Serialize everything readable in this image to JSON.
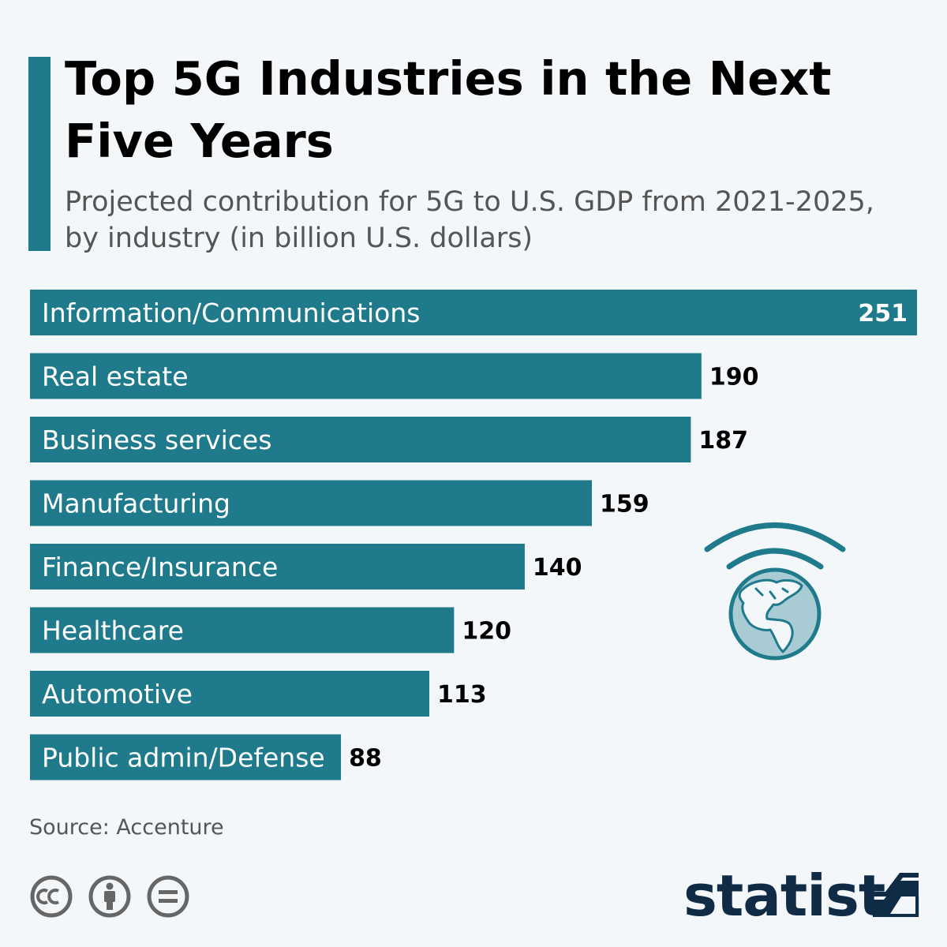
{
  "colors": {
    "bar": "#1f7a8c",
    "accent": "#1f7a8c",
    "brand": "#0f2b45",
    "icon": "#555555"
  },
  "header": {
    "title": "Top 5G Industries in the Next Five Years",
    "subtitle": "Projected contribution for 5G to U.S. GDP from 2021-2025, by industry (in billion U.S. dollars)"
  },
  "chart_data": {
    "type": "bar",
    "orientation": "horizontal",
    "title": "Top 5G Industries in the Next Five Years",
    "subtitle": "Projected contribution for 5G to U.S. GDP from 2021-2025, by industry (in billion U.S. dollars)",
    "categories": [
      "Information/Communications",
      "Real estate",
      "Business services",
      "Manufacturing",
      "Finance/Insurance",
      "Healthcare",
      "Automotive",
      "Public admin/Defense"
    ],
    "values": [
      251,
      190,
      187,
      159,
      140,
      120,
      113,
      88
    ],
    "xlim": [
      0,
      251
    ],
    "xlabel": "",
    "ylabel": "",
    "grid": false
  },
  "footer": {
    "source": "Source: Accenture",
    "brand": "statista",
    "license_icons": [
      "cc-icon",
      "attribution-icon",
      "no-derivatives-icon"
    ]
  },
  "illustration": "globe-with-signal-waves-icon"
}
